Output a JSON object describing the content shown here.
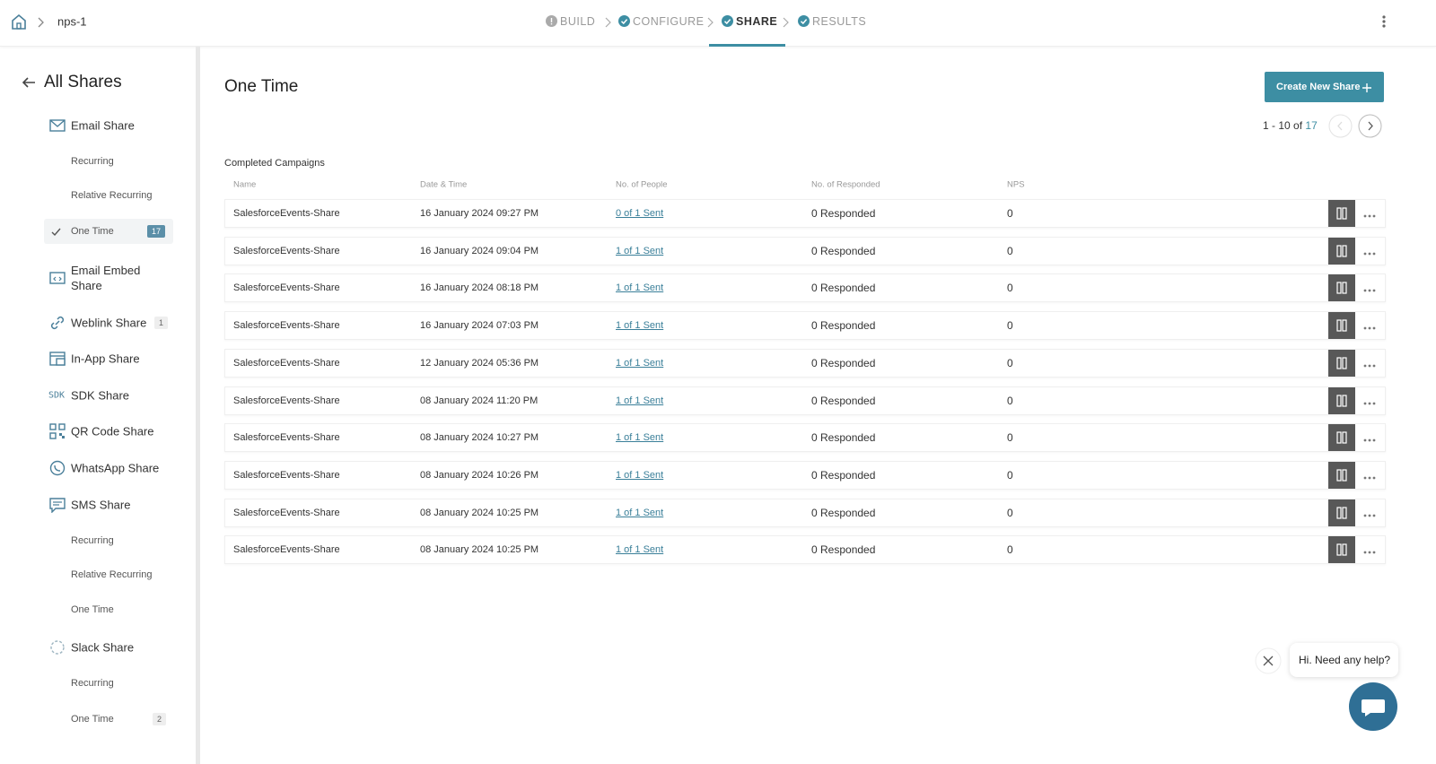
{
  "header": {
    "breadcrumb": "nps-1",
    "steps": [
      {
        "label": "BUILD",
        "status": "info"
      },
      {
        "label": "CONFIGURE",
        "status": "done"
      },
      {
        "label": "SHARE",
        "status": "active"
      },
      {
        "label": "RESULTS",
        "status": "done"
      }
    ]
  },
  "sidebar": {
    "title": "All Shares",
    "items": [
      {
        "label": "Email Share",
        "icon": "mail",
        "children": [
          {
            "label": "Recurring"
          },
          {
            "label": "Relative Recurring"
          },
          {
            "label": "One Time",
            "badge": 17,
            "selected": true
          }
        ]
      },
      {
        "label": "Email Embed Share",
        "icon": "embed"
      },
      {
        "label": "Weblink Share",
        "icon": "link",
        "badge": 1
      },
      {
        "label": "In-App Share",
        "icon": "app"
      },
      {
        "label": "SDK Share",
        "icon": "sdk",
        "icon_text": "SDK"
      },
      {
        "label": "QR Code Share",
        "icon": "qr"
      },
      {
        "label": "WhatsApp Share",
        "icon": "whatsapp"
      },
      {
        "label": "SMS Share",
        "icon": "sms",
        "children": [
          {
            "label": "Recurring"
          },
          {
            "label": "Relative Recurring"
          },
          {
            "label": "One Time"
          }
        ]
      },
      {
        "label": "Slack Share",
        "icon": "slack",
        "children": [
          {
            "label": "Recurring"
          },
          {
            "label": "One Time",
            "badge": 2
          }
        ]
      }
    ]
  },
  "main": {
    "title": "One Time",
    "create_button": "Create New Share",
    "pagination": {
      "range": "1 - 10",
      "of": "of",
      "total": "17"
    },
    "section_title": "Completed Campaigns",
    "table": {
      "columns": [
        "Name",
        "Date & Time",
        "No. of People",
        "No. of Responded",
        "NPS"
      ],
      "rows": [
        [
          "SalesforceEvents-Share",
          "16 January 2024 09:27 PM",
          "0 of 1 Sent",
          "0 Responded",
          0
        ],
        [
          "SalesforceEvents-Share",
          "16 January 2024 09:04 PM",
          "1 of 1 Sent",
          "0 Responded",
          0
        ],
        [
          "SalesforceEvents-Share",
          "16 January 2024 08:18 PM",
          "1 of 1 Sent",
          "0 Responded",
          0
        ],
        [
          "SalesforceEvents-Share",
          "16 January 2024 07:03 PM",
          "1 of 1 Sent",
          "0 Responded",
          0
        ],
        [
          "SalesforceEvents-Share",
          "12 January 2024 05:36 PM",
          "1 of 1 Sent",
          "0 Responded",
          0
        ],
        [
          "SalesforceEvents-Share",
          "08 January 2024 11:20 PM",
          "1 of 1 Sent",
          "0 Responded",
          0
        ],
        [
          "SalesforceEvents-Share",
          "08 January 2024 10:27 PM",
          "1 of 1 Sent",
          "0 Responded",
          0
        ],
        [
          "SalesforceEvents-Share",
          "08 January 2024 10:26 PM",
          "1 of 1 Sent",
          "0 Responded",
          0
        ],
        [
          "SalesforceEvents-Share",
          "08 January 2024 10:25 PM",
          "1 of 1 Sent",
          "0 Responded",
          0
        ],
        [
          "SalesforceEvents-Share",
          "08 January 2024 10:25 PM",
          "1 of 1 Sent",
          "0 Responded",
          0
        ]
      ]
    }
  },
  "chat": {
    "message": "Hi. Need any help?"
  }
}
